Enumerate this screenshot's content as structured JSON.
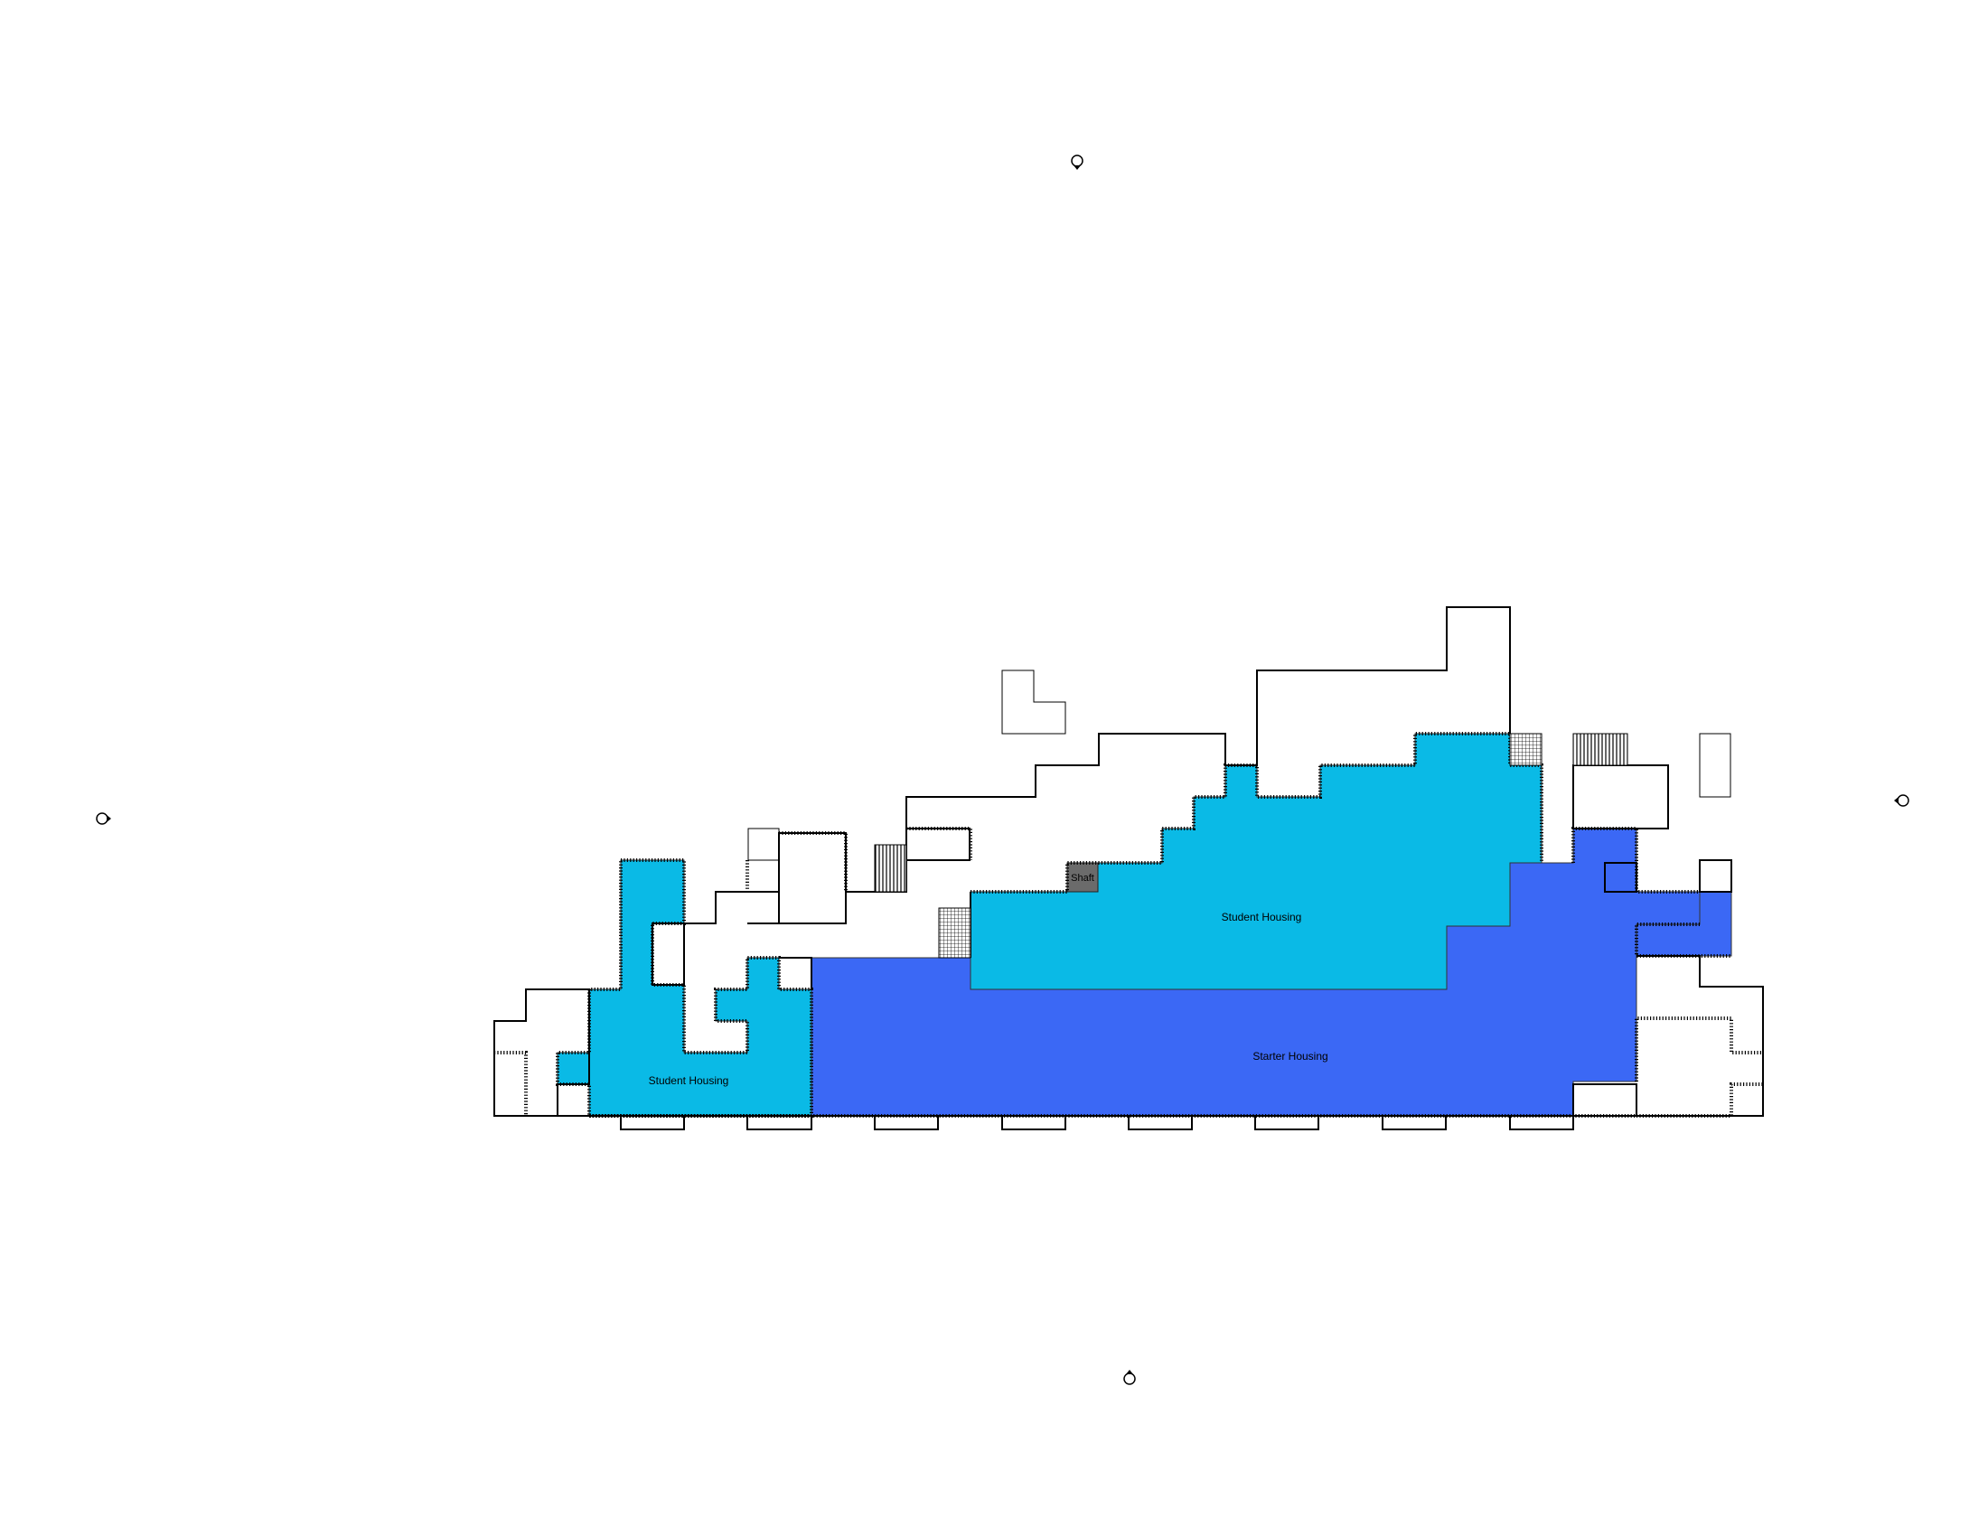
{
  "colors": {
    "student_housing": "#0abae6",
    "starter_housing": "#3b68f5",
    "shaft": "#6b6b6b",
    "lines": "#000000"
  },
  "zones": [
    {
      "name": "student-housing-west",
      "label": "Student Housing",
      "program": "student_housing"
    },
    {
      "name": "student-housing-central",
      "label": "Student Housing",
      "program": "student_housing"
    },
    {
      "name": "starter-housing",
      "label": "Starter Housing",
      "program": "starter_housing"
    }
  ],
  "shaft": {
    "label": "Shaft"
  },
  "markers": [
    {
      "name": "north-view-marker",
      "direction": "down",
      "icon": "elevation-marker-icon"
    },
    {
      "name": "west-view-marker",
      "direction": "right",
      "icon": "elevation-marker-icon"
    },
    {
      "name": "east-view-marker",
      "direction": "left",
      "icon": "elevation-marker-icon"
    },
    {
      "name": "south-view-marker",
      "direction": "up",
      "icon": "elevation-marker-icon"
    }
  ]
}
